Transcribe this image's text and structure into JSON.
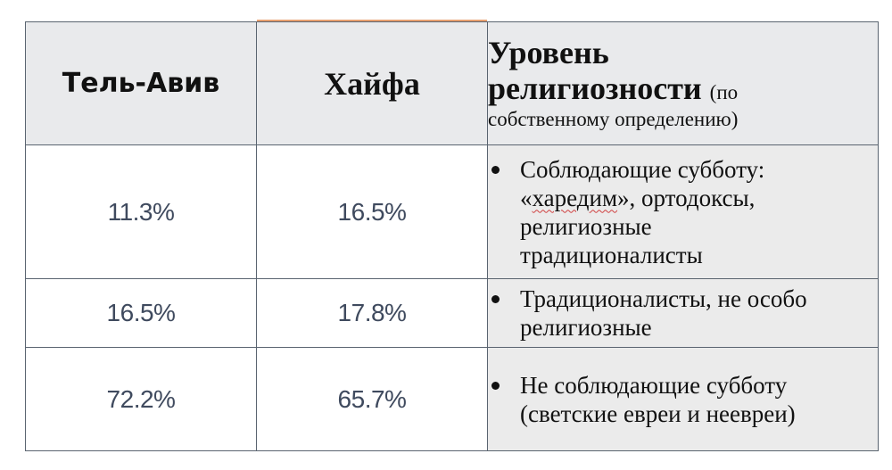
{
  "table": {
    "header": {
      "tel_aviv": "Тель-Авив",
      "haifa": "Хайфа",
      "level_line1": "Уровень",
      "level_line2": "религиозности",
      "level_note_1": "(по",
      "level_note_2": "собственному определению)"
    },
    "rows": [
      {
        "tel_aviv": "11.3%",
        "haifa": "16.5%",
        "desc": {
          "line1": "Соблюдающие субботу:",
          "line2_pre": "«",
          "line2_word": "харедим",
          "line2_post": "», ортодоксы,",
          "line3": "религиозные",
          "line4": "традиционалисты"
        }
      },
      {
        "tel_aviv": "16.5%",
        "haifa": "17.8%",
        "desc": {
          "line1": "Традиционалисты, не особо",
          "line2": "религиозные"
        }
      },
      {
        "tel_aviv": "72.2%",
        "haifa": "65.7%",
        "desc": {
          "line1": "Не соблюдающие субботу",
          "line2": "(светские евреи и неевреи)"
        }
      }
    ]
  }
}
